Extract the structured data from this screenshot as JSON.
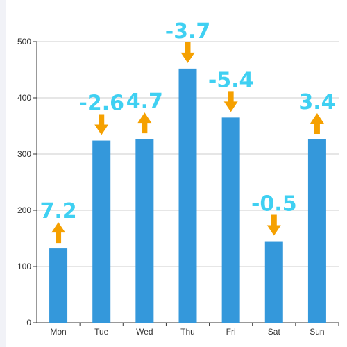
{
  "colors": {
    "bar": "#3498db",
    "label": "#3fd0f2",
    "arrow": "#f5a000",
    "grid": "#cccccc",
    "axis": "#333333"
  },
  "icons": {
    "up": "arrow-up-icon",
    "down": "arrow-down-icon"
  },
  "chart_data": {
    "type": "bar",
    "categories": [
      "Mon",
      "Tue",
      "Wed",
      "Thu",
      "Fri",
      "Sat",
      "Sun"
    ],
    "values": [
      132,
      324,
      327,
      452,
      365,
      145,
      326
    ],
    "changes": [
      "7.2",
      "-2.6",
      "4.7",
      "-3.7",
      "-5.4",
      "-0.5",
      "3.4"
    ],
    "directions": [
      "up",
      "down",
      "up",
      "down",
      "down",
      "down",
      "up"
    ],
    "ylim": [
      0,
      500
    ],
    "yticks": [
      "0",
      "100",
      "200",
      "300",
      "400",
      "500"
    ],
    "grid": true,
    "legend": "none"
  }
}
